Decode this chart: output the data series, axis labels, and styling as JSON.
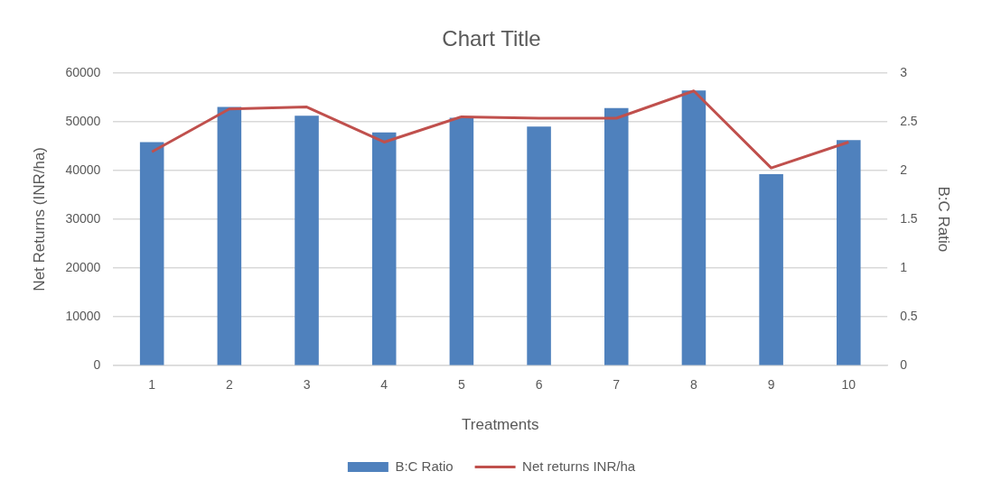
{
  "chart_data": {
    "type": "bar",
    "title": "Chart Title",
    "xlabel": "Treatments",
    "ylabel": "Net Returns (INR/ha)",
    "y2label": "B:C Ratio",
    "categories": [
      "1",
      "2",
      "3",
      "4",
      "5",
      "6",
      "7",
      "8",
      "9",
      "10"
    ],
    "series": [
      {
        "name": "B:C Ratio",
        "axis": "y2",
        "color": "#4f81bd",
        "values": [
          2.29,
          2.65,
          2.56,
          2.39,
          2.54,
          2.45,
          2.64,
          2.82,
          1.96,
          2.31
        ]
      },
      {
        "name": "Net returns INR/ha",
        "type": "line",
        "axis": "y",
        "color": "#c0504d",
        "values": [
          43800,
          52600,
          53000,
          45800,
          51000,
          50700,
          50700,
          56300,
          40500,
          45800
        ]
      }
    ],
    "ylim": [
      0,
      60000
    ],
    "yticks": [
      0,
      10000,
      20000,
      30000,
      40000,
      50000,
      60000
    ],
    "y2lim": [
      0,
      3
    ],
    "y2ticks": [
      0,
      0.5,
      1,
      1.5,
      2,
      2.5,
      3
    ],
    "grid": "y",
    "legend": "bottom",
    "marker": "none",
    "line_style": "solid"
  }
}
